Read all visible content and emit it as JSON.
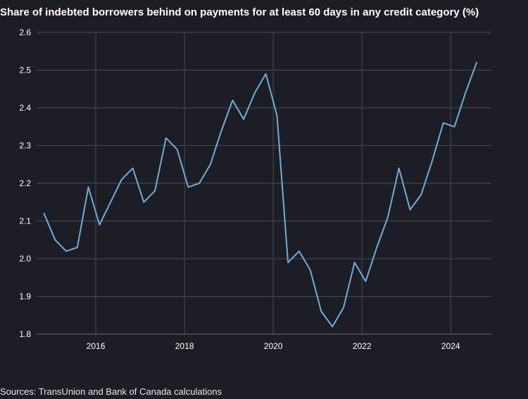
{
  "chart_data": {
    "type": "line",
    "title": "Share of indebted borrowers behind on payments for at least 60 days in any credit category (%)",
    "source": "Sources: TransUnion and Bank of Canada calculations",
    "xlabel": "",
    "ylabel": "",
    "ylim": [
      1.8,
      2.6
    ],
    "yticks": [
      "1.8",
      "1.9",
      "2.0",
      "2.1",
      "2.2",
      "2.3",
      "2.4",
      "2.5",
      "2.6"
    ],
    "xticks": [
      "2016",
      "2018",
      "2020",
      "2022",
      "2024"
    ],
    "xlim": [
      "2014-09",
      "2024-12"
    ],
    "grid": true,
    "line_color": "#6aaee0",
    "series": [
      {
        "x": [
          "2014-11",
          "2015-02",
          "2015-05",
          "2015-08",
          "2015-11",
          "2016-02",
          "2016-05",
          "2016-08",
          "2016-11",
          "2017-02",
          "2017-05",
          "2017-08",
          "2017-11",
          "2018-02",
          "2018-05",
          "2018-08",
          "2018-11",
          "2019-02",
          "2019-05",
          "2019-08",
          "2019-11",
          "2020-02",
          "2020-05",
          "2020-08",
          "2020-11",
          "2021-02",
          "2021-05",
          "2021-08",
          "2021-11",
          "2022-02",
          "2022-05",
          "2022-08",
          "2022-11",
          "2023-02",
          "2023-05",
          "2023-08",
          "2023-11",
          "2024-02",
          "2024-05",
          "2024-08"
        ],
        "values": [
          2.12,
          2.05,
          2.02,
          2.03,
          2.19,
          2.09,
          2.15,
          2.21,
          2.24,
          2.15,
          2.18,
          2.32,
          2.29,
          2.19,
          2.2,
          2.25,
          2.34,
          2.42,
          2.37,
          2.44,
          2.49,
          2.38,
          1.99,
          2.02,
          1.97,
          1.86,
          1.82,
          1.87,
          1.99,
          1.94,
          2.03,
          2.11,
          2.24,
          2.13,
          2.17,
          2.26,
          2.36,
          2.35,
          2.44,
          2.52
        ]
      }
    ]
  }
}
